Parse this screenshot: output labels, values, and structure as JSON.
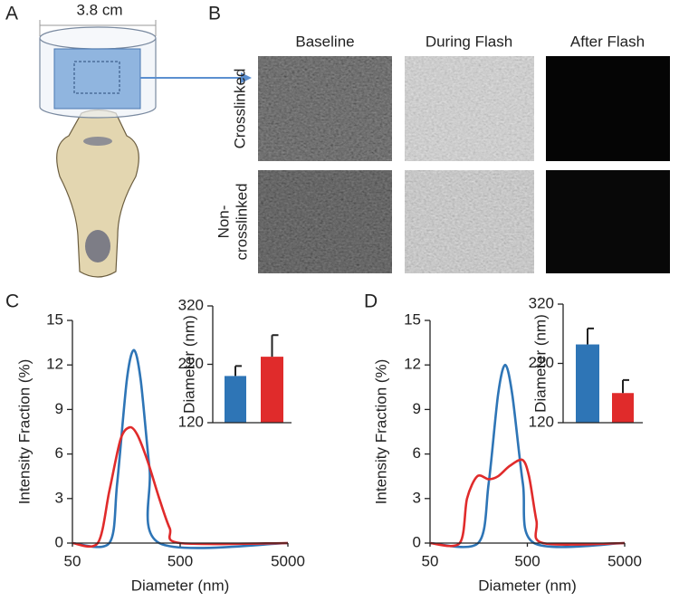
{
  "figure": {
    "panel_labels": [
      "A",
      "B",
      "C",
      "D"
    ],
    "scale_label": "3.8 cm",
    "image_columns": [
      "Baseline",
      "During Flash",
      "After Flash"
    ],
    "image_rows": [
      [
        "Crosslinked"
      ],
      [
        "Non-",
        "crosslinked"
      ]
    ]
  },
  "chart_data": [
    {
      "type": "line",
      "xlabel": "Diameter (nm)",
      "ylabel": "Intensity Fraction (%)",
      "xscale": "log",
      "xlim": [
        50,
        5000
      ],
      "xticks": [
        50,
        500,
        5000
      ],
      "ylim": [
        0,
        15
      ],
      "yticks": [
        0,
        3,
        6,
        9,
        12,
        15
      ],
      "series": [
        {
          "color": "#2e75b6",
          "x": [
            50,
            110,
            130,
            160,
            186,
            215,
            260,
            320,
            5000
          ],
          "values": [
            0,
            0,
            4,
            11,
            13,
            11,
            5,
            0,
            0
          ]
        },
        {
          "color": "#e02b2b",
          "x": [
            50,
            86,
            110,
            140,
            170,
            200,
            250,
            320,
            400,
            500,
            5000
          ],
          "values": [
            0,
            0,
            3.5,
            7,
            7.8,
            7.3,
            5.5,
            3,
            1,
            0,
            0
          ]
        }
      ]
    },
    {
      "type": "bar",
      "ylabel": "Diameter (nm)",
      "ylim": [
        120,
        320
      ],
      "yticks": [
        120,
        220,
        320
      ],
      "values": [
        200,
        233
      ],
      "errors": [
        17,
        37
      ],
      "colors": [
        "#2e75b6",
        "#e02b2b"
      ]
    },
    {
      "type": "line",
      "xlabel": "Diameter (nm)",
      "ylabel": "Intensity Fraction (%)",
      "xscale": "log",
      "xlim": [
        50,
        5000
      ],
      "xticks": [
        50,
        500,
        5000
      ],
      "ylim": [
        0,
        15
      ],
      "yticks": [
        0,
        3,
        6,
        9,
        12,
        15
      ],
      "series": [
        {
          "color": "#2e75b6",
          "x": [
            50,
            156,
            200,
            250,
            296,
            350,
            450,
            586,
            5000
          ],
          "values": [
            0,
            0,
            4,
            10,
            12,
            10,
            4,
            0,
            0
          ]
        },
        {
          "color": "#e02b2b",
          "x": [
            50,
            101,
            120,
            153,
            200,
            250,
            330,
            445,
            520,
            620,
            725,
            5000
          ],
          "values": [
            0,
            0,
            3,
            4.5,
            4.3,
            4.5,
            5.2,
            5.6,
            4.5,
            1.5,
            0,
            0
          ]
        }
      ]
    },
    {
      "type": "bar",
      "ylabel": "Diameter (nm)",
      "ylim": [
        120,
        320
      ],
      "yticks": [
        120,
        220,
        320
      ],
      "values": [
        252,
        170
      ],
      "errors": [
        27,
        22
      ],
      "colors": [
        "#2e75b6",
        "#e02b2b"
      ]
    }
  ]
}
